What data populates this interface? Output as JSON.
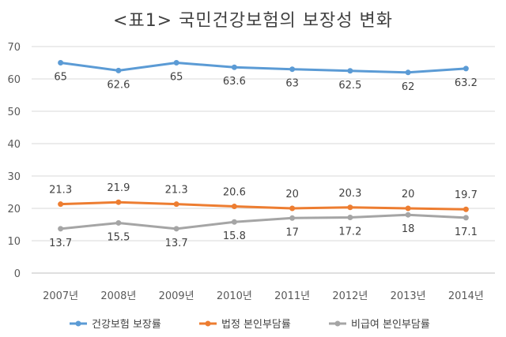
{
  "chart_data": {
    "type": "line",
    "title": "<표1> 국민건강보험의 보장성 변화",
    "categories": [
      "2007년",
      "2008년",
      "2009년",
      "2010년",
      "2011년",
      "2012년",
      "2013년",
      "2014년"
    ],
    "ylim": [
      0,
      70
    ],
    "yticks": [
      0,
      10,
      20,
      30,
      40,
      50,
      60,
      70
    ],
    "grid": true,
    "legend_position": "bottom",
    "series": [
      {
        "name": "건강보험 보장률",
        "color": "#5B9BD5",
        "values": [
          65,
          62.6,
          65,
          63.6,
          63,
          62.5,
          62,
          63.2
        ],
        "labels": [
          "65",
          "62.6",
          "65",
          "63.6",
          "63",
          "62.5",
          "62",
          "63.2"
        ]
      },
      {
        "name": "법정 본인부담률",
        "color": "#ED7D31",
        "values": [
          21.3,
          21.9,
          21.3,
          20.6,
          20,
          20.3,
          20,
          19.7
        ],
        "labels": [
          "21.3",
          "21.9",
          "21.3",
          "20.6",
          "20",
          "20.3",
          "20",
          "19.7"
        ]
      },
      {
        "name": "비급여 본인부담률",
        "color": "#A5A5A5",
        "values": [
          13.7,
          15.5,
          13.7,
          15.8,
          17,
          17.2,
          18,
          17.1
        ],
        "labels": [
          "13.7",
          "15.5",
          "13.7",
          "15.8",
          "17",
          "17.2",
          "18",
          "17.1"
        ]
      }
    ]
  }
}
